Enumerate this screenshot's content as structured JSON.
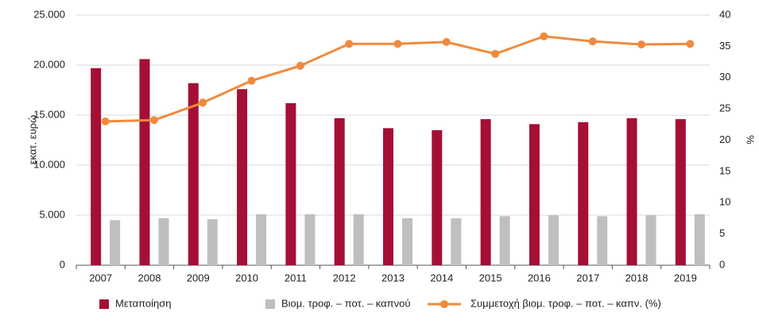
{
  "chart_data": {
    "type": "bar",
    "categories": [
      "2007",
      "2008",
      "2009",
      "2010",
      "2011",
      "2012",
      "2013",
      "2014",
      "2015",
      "2016",
      "2017",
      "2018",
      "2019"
    ],
    "ylabel": "εκατ. ευρώ",
    "y2label": "%",
    "ylim": [
      0,
      25000
    ],
    "yticks": [
      {
        "value": 0,
        "label": "0"
      },
      {
        "value": 5000,
        "label": "5.000"
      },
      {
        "value": 10000,
        "label": "10.000"
      },
      {
        "value": 15000,
        "label": "15.000"
      },
      {
        "value": 20000,
        "label": "20.000"
      },
      {
        "value": 25000,
        "label": "25.000"
      }
    ],
    "y2lim": [
      0,
      40
    ],
    "y2ticks": [
      0,
      5,
      10,
      15,
      20,
      25,
      30,
      35,
      40
    ],
    "grid": true,
    "legend": "bottom",
    "series": [
      {
        "name": "Μεταποίηση",
        "type": "bar",
        "color": "#a50f35",
        "values": [
          19700,
          20600,
          18200,
          17600,
          16200,
          14700,
          13700,
          13500,
          14600,
          14100,
          14300,
          14700,
          14600
        ]
      },
      {
        "name": "Βιομ. τροφ. – ποτ. – καπνού",
        "type": "bar",
        "color": "#bfbfbf",
        "values": [
          4500,
          4700,
          4600,
          5100,
          5100,
          5100,
          4700,
          4700,
          4900,
          5000,
          4900,
          5000,
          5100
        ]
      },
      {
        "name": "Συμμετοχή βιομ. τροφ. – ποτ. – καπν. (%)",
        "type": "line",
        "axis": "y2",
        "color": "#f08a3c",
        "values": [
          23.0,
          23.2,
          26.0,
          29.5,
          31.9,
          35.4,
          35.4,
          35.7,
          33.8,
          36.6,
          35.8,
          35.3,
          35.4
        ]
      }
    ]
  }
}
